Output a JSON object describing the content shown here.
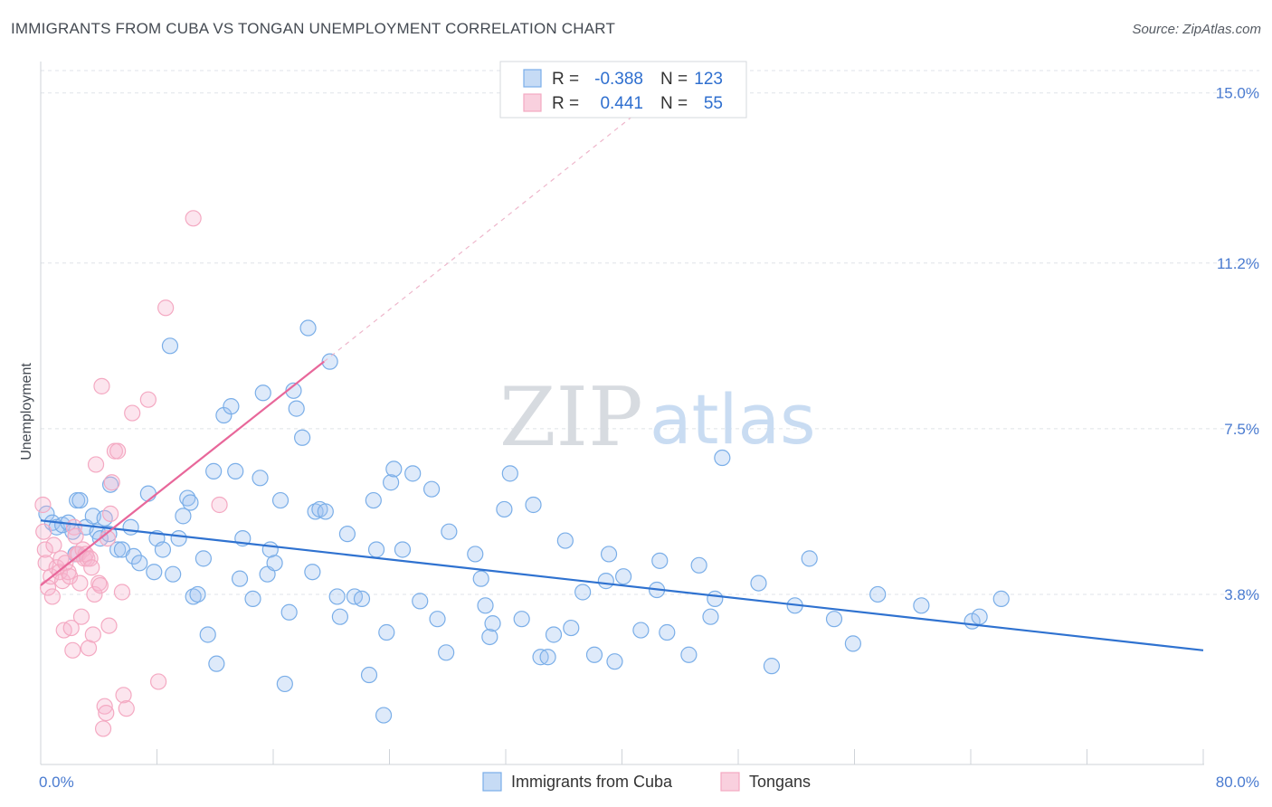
{
  "title": "IMMIGRANTS FROM CUBA VS TONGAN UNEMPLOYMENT CORRELATION CHART",
  "source": "Source: ZipAtlas.com",
  "watermark": {
    "zip": "ZIP",
    "atlas": "atlas"
  },
  "colors": {
    "blue": "#7aaee8",
    "blue_line": "#2f72d0",
    "pink": "#f4a9c2",
    "pink_line": "#e8679a",
    "grid": "#dfe3e8"
  },
  "legend": {
    "rows": [
      {
        "r_label": "R =",
        "r_value": "-0.388",
        "n_label": "N =",
        "n_value": "123"
      },
      {
        "r_label": "R =",
        "r_value": "0.441",
        "n_label": "N =",
        "n_value": "55"
      }
    ]
  },
  "chart_data": {
    "type": "scatter",
    "title": "IMMIGRANTS FROM CUBA VS TONGAN UNEMPLOYMENT CORRELATION CHART",
    "xlabel": "",
    "ylabel": "Unemployment",
    "xlim": [
      0,
      80
    ],
    "ylim": [
      0,
      15.5
    ],
    "x_tick_labels": [
      "0.0%",
      "80.0%"
    ],
    "y_ticks": [
      3.8,
      7.5,
      11.2,
      15.0
    ],
    "y_tick_labels": [
      "3.8%",
      "7.5%",
      "11.2%",
      "15.0%"
    ],
    "grid": true,
    "legend_position": "top-center",
    "series": [
      {
        "name": "Immigrants from Cuba",
        "color": "#7aaee8",
        "r": -0.388,
        "n": 123,
        "trend": {
          "x0": 0,
          "y0": 5.45,
          "x1": 80,
          "y1": 2.55
        },
        "points": [
          [
            0.4,
            5.6
          ],
          [
            0.8,
            5.4
          ],
          [
            1.1,
            5.3
          ],
          [
            1.5,
            5.35
          ],
          [
            1.9,
            5.4
          ],
          [
            2.2,
            5.2
          ],
          [
            2.4,
            4.7
          ],
          [
            2.5,
            5.9
          ],
          [
            2.7,
            5.9
          ],
          [
            3.1,
            5.3
          ],
          [
            3.6,
            5.55
          ],
          [
            3.9,
            5.2
          ],
          [
            4.1,
            5.05
          ],
          [
            4.4,
            5.5
          ],
          [
            4.7,
            5.15
          ],
          [
            4.8,
            6.25
          ],
          [
            5.3,
            4.8
          ],
          [
            5.6,
            4.8
          ],
          [
            6.2,
            5.3
          ],
          [
            6.4,
            4.65
          ],
          [
            6.8,
            4.5
          ],
          [
            7.4,
            6.05
          ],
          [
            7.8,
            4.3
          ],
          [
            8.0,
            5.05
          ],
          [
            8.4,
            4.8
          ],
          [
            8.9,
            9.35
          ],
          [
            9.1,
            4.25
          ],
          [
            9.5,
            5.05
          ],
          [
            9.8,
            5.55
          ],
          [
            10.1,
            5.95
          ],
          [
            10.3,
            5.85
          ],
          [
            10.5,
            3.75
          ],
          [
            10.8,
            3.8
          ],
          [
            11.2,
            4.6
          ],
          [
            11.5,
            2.9
          ],
          [
            11.9,
            6.55
          ],
          [
            12.1,
            2.25
          ],
          [
            12.6,
            7.8
          ],
          [
            13.1,
            8.0
          ],
          [
            13.4,
            6.55
          ],
          [
            13.7,
            4.15
          ],
          [
            13.9,
            5.05
          ],
          [
            14.6,
            3.7
          ],
          [
            15.1,
            6.4
          ],
          [
            15.3,
            8.3
          ],
          [
            15.6,
            4.25
          ],
          [
            15.8,
            4.8
          ],
          [
            16.1,
            4.5
          ],
          [
            16.5,
            5.9
          ],
          [
            16.8,
            1.8
          ],
          [
            17.1,
            3.4
          ],
          [
            17.4,
            8.35
          ],
          [
            17.6,
            7.95
          ],
          [
            18.0,
            7.3
          ],
          [
            18.4,
            9.75
          ],
          [
            18.7,
            4.3
          ],
          [
            18.9,
            5.65
          ],
          [
            19.2,
            5.7
          ],
          [
            19.6,
            5.65
          ],
          [
            19.9,
            9.0
          ],
          [
            20.4,
            3.75
          ],
          [
            20.6,
            3.3
          ],
          [
            21.1,
            5.15
          ],
          [
            21.6,
            3.75
          ],
          [
            22.1,
            3.7
          ],
          [
            22.6,
            2.0
          ],
          [
            22.9,
            5.9
          ],
          [
            23.1,
            4.8
          ],
          [
            23.6,
            1.1
          ],
          [
            23.8,
            2.95
          ],
          [
            24.1,
            6.3
          ],
          [
            24.3,
            6.6
          ],
          [
            24.9,
            4.8
          ],
          [
            25.6,
            6.5
          ],
          [
            26.1,
            3.65
          ],
          [
            26.9,
            6.15
          ],
          [
            27.3,
            3.25
          ],
          [
            27.9,
            2.5
          ],
          [
            28.1,
            5.2
          ],
          [
            29.9,
            4.7
          ],
          [
            30.3,
            4.15
          ],
          [
            30.6,
            3.55
          ],
          [
            30.9,
            2.85
          ],
          [
            31.1,
            3.15
          ],
          [
            31.9,
            5.7
          ],
          [
            32.3,
            6.5
          ],
          [
            33.1,
            3.25
          ],
          [
            33.9,
            5.8
          ],
          [
            34.4,
            2.4
          ],
          [
            34.9,
            2.4
          ],
          [
            35.3,
            2.9
          ],
          [
            36.1,
            5.0
          ],
          [
            36.5,
            3.05
          ],
          [
            37.3,
            3.85
          ],
          [
            38.1,
            2.45
          ],
          [
            38.9,
            4.1
          ],
          [
            39.1,
            4.7
          ],
          [
            39.5,
            2.3
          ],
          [
            40.1,
            4.2
          ],
          [
            41.3,
            3.0
          ],
          [
            42.4,
            3.9
          ],
          [
            42.6,
            4.55
          ],
          [
            43.1,
            2.95
          ],
          [
            44.6,
            2.45
          ],
          [
            45.3,
            4.45
          ],
          [
            46.1,
            3.3
          ],
          [
            46.4,
            3.7
          ],
          [
            46.9,
            6.85
          ],
          [
            49.4,
            4.05
          ],
          [
            50.3,
            2.2
          ],
          [
            51.9,
            3.55
          ],
          [
            52.9,
            4.6
          ],
          [
            54.6,
            3.25
          ],
          [
            55.9,
            2.7
          ],
          [
            57.6,
            3.8
          ],
          [
            60.6,
            3.55
          ],
          [
            64.1,
            3.2
          ],
          [
            64.6,
            3.3
          ],
          [
            66.1,
            3.7
          ]
        ]
      },
      {
        "name": "Tongans",
        "color": "#f4a9c2",
        "r": 0.441,
        "n": 55,
        "trend_solid": {
          "x0": 0,
          "y0": 4.0,
          "x1": 19.5,
          "y1": 9.0
        },
        "trend_dashed": {
          "x0": 19.5,
          "y0": 9.0,
          "x1": 41,
          "y1": 14.55
        },
        "points": [
          [
            0.15,
            5.8
          ],
          [
            0.2,
            5.2
          ],
          [
            0.3,
            4.8
          ],
          [
            0.35,
            4.5
          ],
          [
            0.5,
            3.95
          ],
          [
            0.7,
            4.2
          ],
          [
            0.8,
            3.75
          ],
          [
            0.9,
            4.9
          ],
          [
            1.1,
            4.4
          ],
          [
            1.3,
            4.3
          ],
          [
            1.4,
            4.6
          ],
          [
            1.5,
            4.1
          ],
          [
            1.6,
            3.0
          ],
          [
            1.7,
            4.5
          ],
          [
            1.9,
            4.3
          ],
          [
            2.0,
            4.2
          ],
          [
            2.1,
            3.05
          ],
          [
            2.2,
            2.55
          ],
          [
            2.3,
            5.3
          ],
          [
            2.4,
            5.1
          ],
          [
            2.5,
            4.7
          ],
          [
            2.6,
            4.7
          ],
          [
            2.7,
            4.05
          ],
          [
            2.8,
            3.3
          ],
          [
            2.9,
            4.8
          ],
          [
            3.0,
            4.6
          ],
          [
            3.1,
            4.7
          ],
          [
            3.2,
            4.6
          ],
          [
            3.3,
            2.6
          ],
          [
            3.4,
            4.6
          ],
          [
            3.5,
            4.4
          ],
          [
            3.6,
            2.9
          ],
          [
            3.7,
            3.8
          ],
          [
            3.8,
            6.7
          ],
          [
            4.0,
            4.05
          ],
          [
            4.1,
            4.0
          ],
          [
            4.2,
            8.45
          ],
          [
            4.3,
            0.8
          ],
          [
            4.4,
            1.3
          ],
          [
            4.5,
            1.15
          ],
          [
            4.6,
            5.05
          ],
          [
            4.7,
            3.1
          ],
          [
            4.8,
            5.6
          ],
          [
            4.9,
            6.3
          ],
          [
            5.1,
            7.0
          ],
          [
            5.3,
            7.0
          ],
          [
            5.6,
            3.85
          ],
          [
            5.7,
            1.55
          ],
          [
            5.9,
            1.25
          ],
          [
            6.3,
            7.85
          ],
          [
            7.4,
            8.15
          ],
          [
            8.1,
            1.85
          ],
          [
            8.6,
            10.2
          ],
          [
            10.5,
            12.2
          ],
          [
            12.3,
            5.8
          ]
        ]
      }
    ]
  },
  "bottom_legend": [
    {
      "label": "Immigrants from Cuba"
    },
    {
      "label": "Tongans"
    }
  ]
}
